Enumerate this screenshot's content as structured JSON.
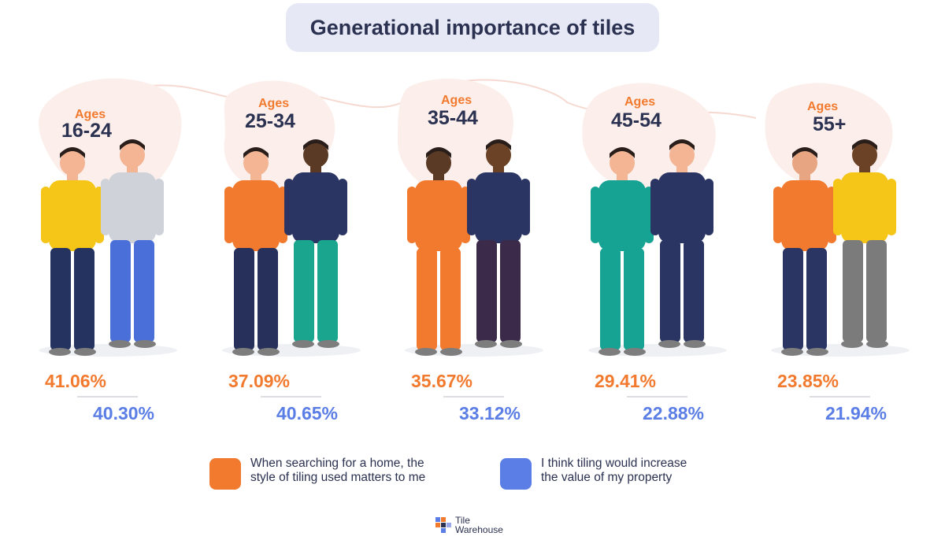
{
  "title": "Generational importance of tiles",
  "chart_data": {
    "type": "bar",
    "title": "Generational importance of tiles",
    "categories": [
      {
        "word": "Ages",
        "range": "16-24"
      },
      {
        "word": "Ages",
        "range": "25-34"
      },
      {
        "word": "Ages",
        "range": "35-44"
      },
      {
        "word": "Ages",
        "range": "45-54"
      },
      {
        "word": "Ages",
        "range": "55+"
      }
    ],
    "series": [
      {
        "name": "When searching for a home, the style of tiling used matters to me",
        "color": "#f27a2e",
        "values": [
          41.06,
          37.09,
          35.67,
          29.41,
          23.85
        ],
        "labels": [
          "41.06%",
          "37.09%",
          "35.67%",
          "29.41%",
          "23.85%"
        ]
      },
      {
        "name": "I think tiling would increase the value of my property",
        "color": "#5b7ee6",
        "values": [
          40.3,
          40.65,
          33.12,
          22.88,
          21.94
        ],
        "labels": [
          "40.30%",
          "40.65%",
          "33.12%",
          "22.88%",
          "21.94%"
        ]
      }
    ],
    "legend_position": "bottom"
  },
  "legend": [
    {
      "text": "When searching for a home, the\nstyle of tiling used matters to me",
      "color": "#f27a2e"
    },
    {
      "text": "I think tiling would increase\nthe value of my property",
      "color": "#5b7ee6"
    }
  ],
  "brand": {
    "text": "Tile\nWarehouse"
  },
  "colors": {
    "orange": "#f27a2e",
    "blue": "#5b7ee6",
    "navy": "#2b3150",
    "title_bg": "#e6e8f5",
    "blob": "#fcefeb"
  },
  "icons": [
    "person-pair-illustration",
    "tile-logo-icon"
  ]
}
